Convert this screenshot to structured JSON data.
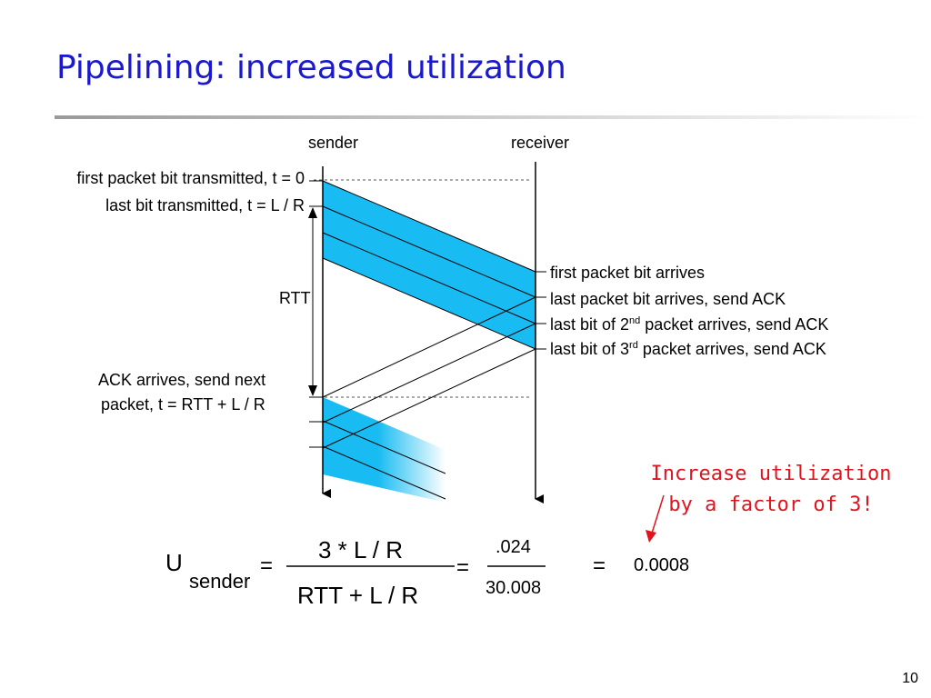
{
  "slide": {
    "title": "Pipelining: increased utilization",
    "page_number": "10"
  },
  "diagram": {
    "sender_label": "sender",
    "receiver_label": "receiver",
    "left_labels": {
      "first_bit": "first packet bit transmitted, t = 0",
      "last_bit": "last bit transmitted, t = L / R",
      "rtt": "RTT",
      "ack_line1": "ACK arrives, send next",
      "ack_line2": "packet, t = RTT + L / R"
    },
    "right_labels": {
      "first_arrives": "first packet bit arrives",
      "last_arrives": "last packet bit arrives, send ACK",
      "second_prefix": "last bit of 2",
      "second_sup": "nd",
      "second_suffix": " packet arrives, send ACK",
      "third_prefix": "last bit of 3",
      "third_sup": "rd",
      "third_suffix": " packet arrives, send ACK"
    },
    "packet_color": "#19bcf2"
  },
  "note": {
    "line1": "Increase utilization",
    "line2": "by a factor of 3!",
    "color": "#e0141e"
  },
  "formula": {
    "u": "U",
    "sender_sub": "sender",
    "eq": "=",
    "numerator": "3 * L / R",
    "denominator": "RTT + L / R",
    "numerator2": ".024",
    "denominator2": "30.008",
    "result": "0.0008"
  }
}
